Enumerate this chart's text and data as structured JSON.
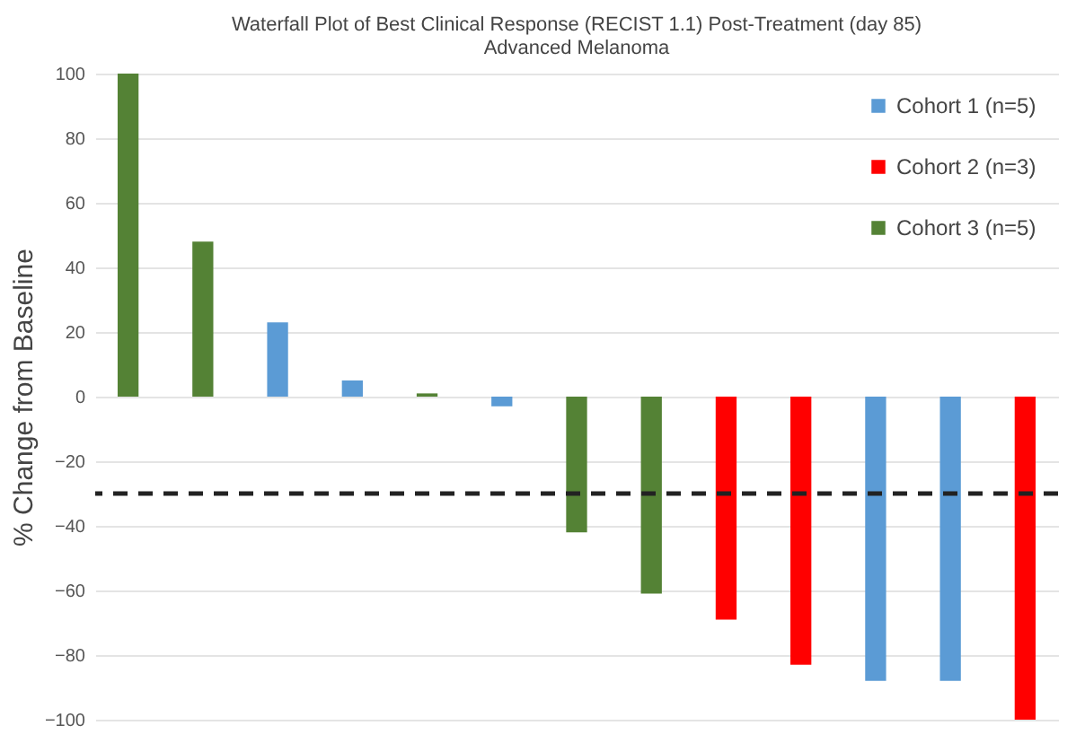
{
  "chart_data": {
    "type": "bar",
    "title": "Waterfall Plot of Best Clinical Response (RECIST 1.1) Post-Treatment  (day 85)",
    "subtitle": "Advanced Melanoma",
    "ylabel": "% Change from Baseline",
    "categories": [
      null,
      null,
      null,
      null,
      null,
      null,
      null,
      null,
      null,
      null,
      null,
      null,
      null
    ],
    "series": [
      {
        "name": "Cohort 1 (n=5)",
        "color": "#5b9bd5",
        "values": [
          null,
          null,
          23,
          5,
          null,
          -3,
          null,
          null,
          null,
          null,
          -88,
          -88,
          null
        ]
      },
      {
        "name": "Cohort 2 (n=3)",
        "color": "#ff0000",
        "values": [
          null,
          null,
          null,
          null,
          null,
          null,
          null,
          null,
          -69,
          -83,
          null,
          null,
          -100
        ]
      },
      {
        "name": "Cohort 3 (n=5)",
        "color": "#548235",
        "values": [
          100,
          48,
          null,
          null,
          1,
          null,
          -42,
          -61,
          null,
          null,
          null,
          null,
          null
        ]
      }
    ],
    "ylim": [
      -100,
      100
    ],
    "yticks": [
      -100,
      -80,
      -60,
      -40,
      -20,
      0,
      20,
      40,
      60,
      80,
      100
    ],
    "grid": "y",
    "legend": "top right",
    "tick_labels": "y",
    "ref_lines": [
      {
        "axis": "y",
        "value": -30,
        "color": "#222222",
        "line_style": "dashed"
      }
    ]
  }
}
